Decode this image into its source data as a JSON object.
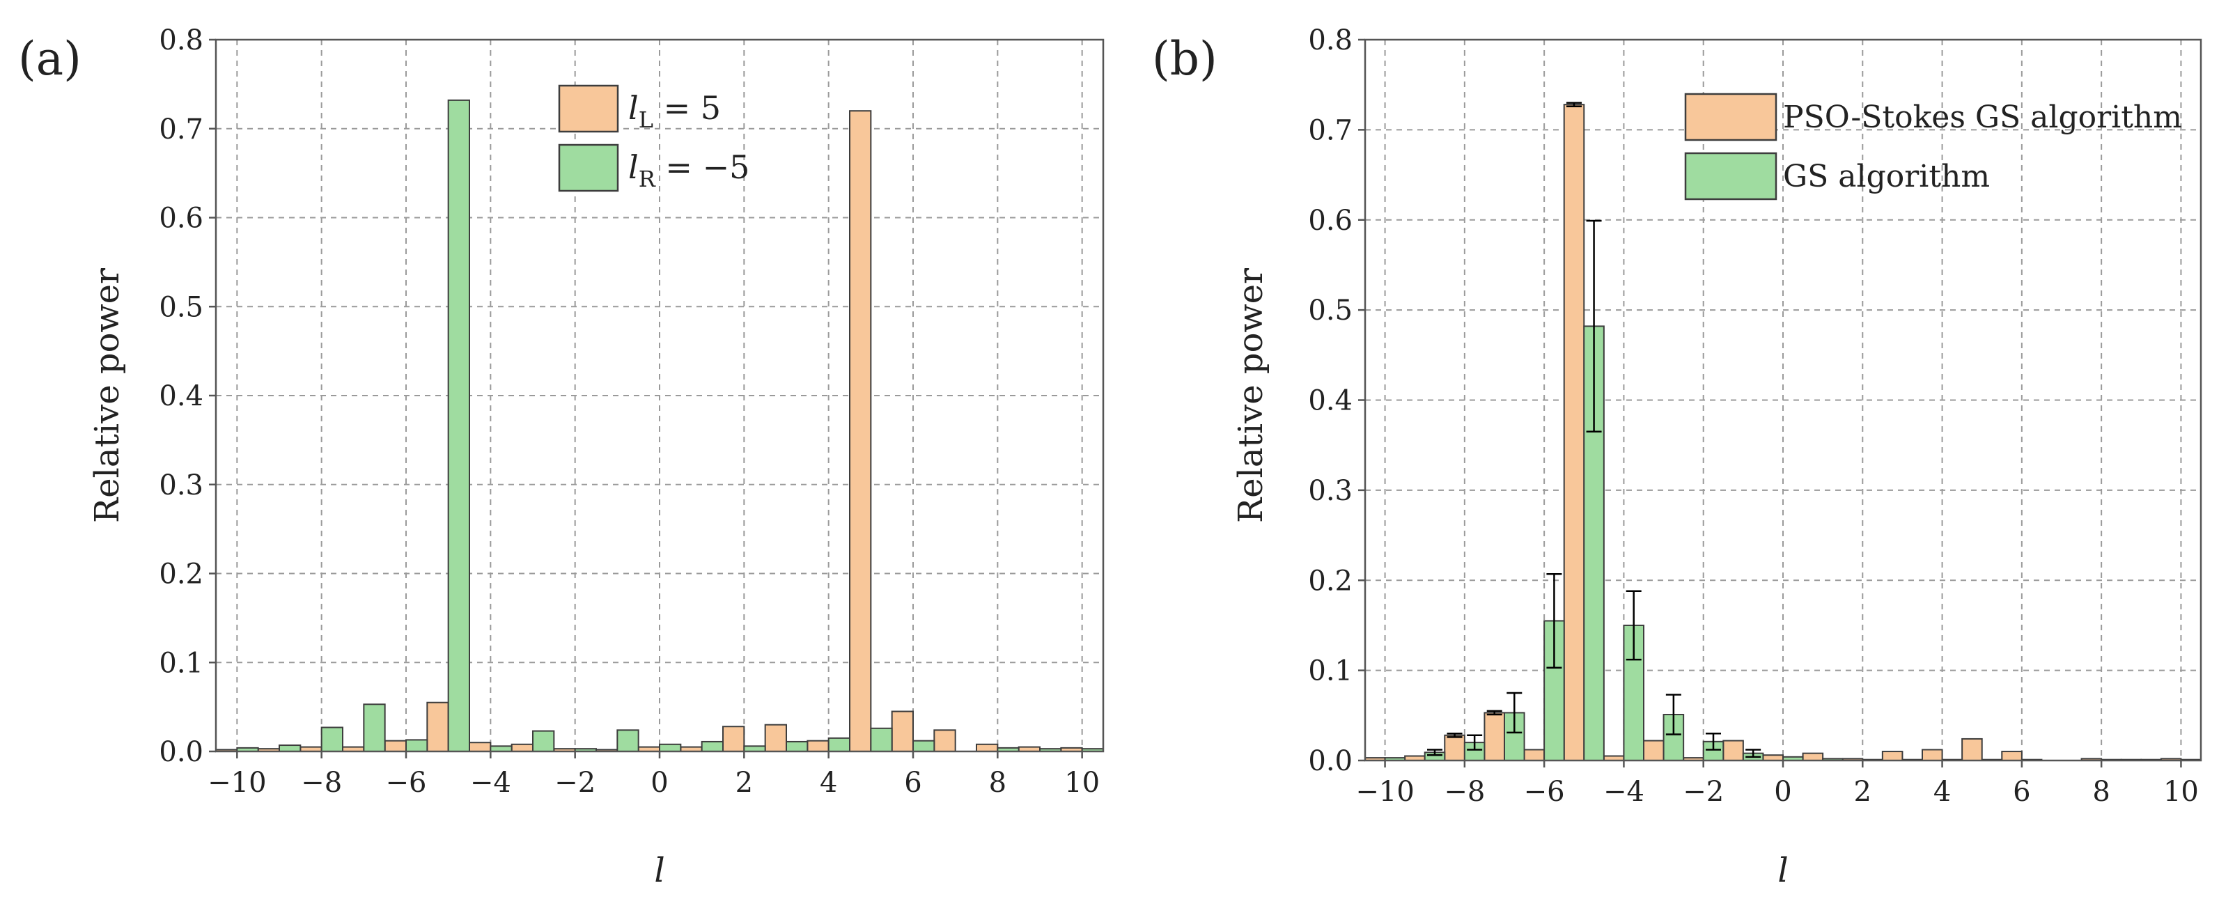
{
  "colors": {
    "orange": "#f8c79a",
    "green": "#9fdca0",
    "bar_edge": "#3d3d3d",
    "error_bar": "#000000"
  },
  "chart_data": [
    {
      "id": "a",
      "type": "bar",
      "panel_label": "(a)",
      "xlabel": "l",
      "ylabel": "Relative power",
      "ylim": [
        0,
        0.8
      ],
      "yticks": [
        0.0,
        0.1,
        0.2,
        0.3,
        0.4,
        0.5,
        0.6,
        0.7,
        0.8
      ],
      "ytick_labels": [
        "0.0",
        "0.1",
        "0.2",
        "0.3",
        "0.4",
        "0.5",
        "0.6",
        "0.7",
        "0.8"
      ],
      "xticks": [
        -10,
        -8,
        -6,
        -4,
        -2,
        0,
        2,
        4,
        6,
        8,
        10
      ],
      "xtick_labels": [
        "−10",
        "−8",
        "−6",
        "−4",
        "−2",
        "0",
        "2",
        "4",
        "6",
        "8",
        "10"
      ],
      "legend_position": "top-center",
      "categories": [
        -10,
        -9,
        -8,
        -7,
        -6,
        -5,
        -4,
        -3,
        -2,
        -1,
        0,
        1,
        2,
        3,
        4,
        5,
        6,
        7,
        8,
        9,
        10
      ],
      "series": [
        {
          "name": "l_L = 5",
          "legend_symbol": "l",
          "legend_sub": "L",
          "legend_rest": " = 5",
          "color_key": "orange",
          "values": [
            0.002,
            0.003,
            0.005,
            0.005,
            0.012,
            0.055,
            0.01,
            0.008,
            0.003,
            0.002,
            0.005,
            0.005,
            0.028,
            0.03,
            0.012,
            0.72,
            0.045,
            0.024,
            0.008,
            0.005,
            0.004
          ]
        },
        {
          "name": "l_R = −5",
          "legend_symbol": "l",
          "legend_sub": "R",
          "legend_rest": " = −5",
          "color_key": "green",
          "values": [
            0.004,
            0.007,
            0.027,
            0.053,
            0.013,
            0.732,
            0.006,
            0.023,
            0.003,
            0.024,
            0.008,
            0.011,
            0.006,
            0.011,
            0.015,
            0.026,
            0.012,
            0.0,
            0.004,
            0.003,
            0.003
          ]
        }
      ]
    },
    {
      "id": "b",
      "type": "bar",
      "panel_label": "(b)",
      "xlabel": "l",
      "ylabel": "Relative power",
      "ylim": [
        0,
        0.8
      ],
      "yticks": [
        0.0,
        0.1,
        0.2,
        0.3,
        0.4,
        0.5,
        0.6,
        0.7,
        0.8
      ],
      "ytick_labels": [
        "0.0",
        "0.1",
        "0.2",
        "0.3",
        "0.4",
        "0.5",
        "0.6",
        "0.7",
        "0.8"
      ],
      "xticks": [
        -10,
        -8,
        -6,
        -4,
        -2,
        0,
        2,
        4,
        6,
        8,
        10
      ],
      "xtick_labels": [
        "−10",
        "−8",
        "−6",
        "−4",
        "−2",
        "0",
        "2",
        "4",
        "6",
        "8",
        "10"
      ],
      "legend_position": "top-right",
      "categories": [
        -10,
        -9,
        -8,
        -7,
        -6,
        -5,
        -4,
        -3,
        -2,
        -1,
        0,
        1,
        2,
        3,
        4,
        5,
        6,
        7,
        8,
        9,
        10
      ],
      "series": [
        {
          "name": "PSO-Stokes GS algorithm",
          "color_key": "orange",
          "values": [
            0.003,
            0.005,
            0.028,
            0.053,
            0.012,
            0.728,
            0.005,
            0.022,
            0.003,
            0.022,
            0.006,
            0.008,
            0.002,
            0.01,
            0.012,
            0.024,
            0.01,
            0.0,
            0.002,
            0.001,
            0.002
          ],
          "errors": [
            0.001,
            0.001,
            0.002,
            0.002,
            0.001,
            0.002,
            0.001,
            0.001,
            0.001,
            0.001,
            0.001,
            0.001,
            0.0,
            0.001,
            0.001,
            0.001,
            0.001,
            0.0,
            0.0,
            0.0,
            0.0
          ]
        },
        {
          "name": "GS algorithm",
          "color_key": "green",
          "values": [
            0.003,
            0.009,
            0.02,
            0.053,
            0.155,
            0.482,
            0.15,
            0.051,
            0.021,
            0.008,
            0.004,
            0.002,
            0.001,
            0.001,
            0.001,
            0.001,
            0.001,
            0.0,
            0.001,
            0.001,
            0.001
          ],
          "errors": [
            0.001,
            0.003,
            0.008,
            0.022,
            0.052,
            0.117,
            0.038,
            0.022,
            0.009,
            0.004,
            0.001,
            0.0,
            0.0,
            0.0,
            0.0,
            0.0,
            0.0,
            0.0,
            0.0,
            0.0,
            0.0
          ]
        }
      ]
    }
  ]
}
